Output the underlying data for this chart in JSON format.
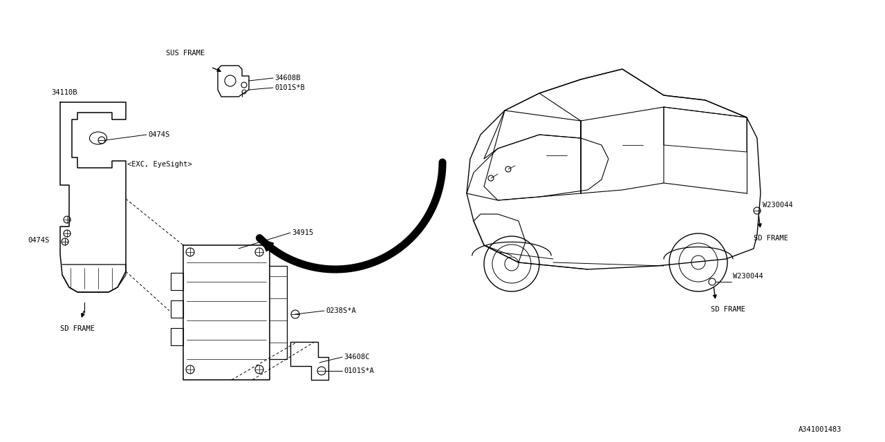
{
  "background_color": "#ffffff",
  "fig_width": 12.8,
  "fig_height": 6.4,
  "labels": {
    "SUS_FRAME": "SUS FRAME",
    "part_34608B": "34608B",
    "part_0101SB": "0101S*B",
    "part_34110B": "34110B",
    "part_EXC": "<EXC, EyeSight>",
    "part_0474S_top": "0474S",
    "part_0474S_bot": "0474S",
    "part_34915": "34915",
    "part_0238SA": "0238S*A",
    "part_34608C": "34608C",
    "part_0101SA": "0101S*A",
    "SD_FRAME_left": "SD FRAME",
    "SD_FRAME_right1": "SD FRAME",
    "SD_FRAME_right2": "SD FRAME",
    "W230044_top": "W230044",
    "W230044_bot": "W230044",
    "diagram_id": "A341001483"
  },
  "line_color": "#000000",
  "text_color": "#000000",
  "font_size": 7.5,
  "font_family": "monospace"
}
